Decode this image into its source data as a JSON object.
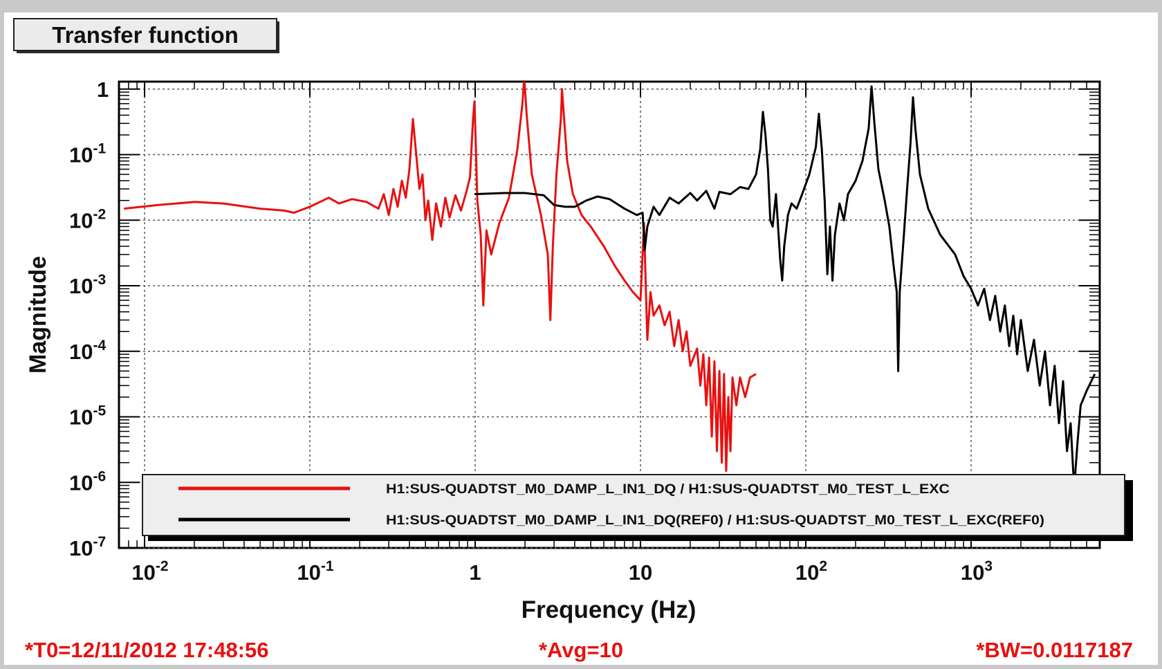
{
  "title_box": "Transfer function",
  "footer": {
    "t0": "*T0=12/11/2012 17:48:56",
    "avg": "*Avg=10",
    "bw": "*BW=0.0117187"
  },
  "colors": {
    "series_ref": "#e81010",
    "series_cur": "#000000",
    "footer_text": "#e81010",
    "plot_bg": "#ffffff",
    "frame_bg": "#ffffff",
    "legend_bg": "#eeeeee"
  },
  "chart_data": {
    "type": "line",
    "xlabel": "Frequency (Hz)",
    "ylabel": "Magnitude",
    "xscale": "log",
    "yscale": "log",
    "xlim": [
      0.007,
      6000
    ],
    "ylim": [
      1e-07,
      1.3
    ],
    "grid": true,
    "legend_placement": "bottom",
    "x_ticks": [
      {
        "v": 0.01,
        "base": "10",
        "exp": "-2"
      },
      {
        "v": 0.1,
        "base": "10",
        "exp": "-1"
      },
      {
        "v": 1,
        "base": "1",
        "exp": ""
      },
      {
        "v": 10,
        "base": "10",
        "exp": ""
      },
      {
        "v": 100,
        "base": "10",
        "exp": "2"
      },
      {
        "v": 1000,
        "base": "10",
        "exp": "3"
      }
    ],
    "y_ticks": [
      {
        "v": 1,
        "base": "1",
        "exp": ""
      },
      {
        "v": 0.1,
        "base": "10",
        "exp": "-1"
      },
      {
        "v": 0.01,
        "base": "10",
        "exp": "-2"
      },
      {
        "v": 0.001,
        "base": "10",
        "exp": "-3"
      },
      {
        "v": 0.0001,
        "base": "10",
        "exp": "-4"
      },
      {
        "v": 1e-05,
        "base": "10",
        "exp": "-5"
      },
      {
        "v": 1e-06,
        "base": "10",
        "exp": "-6"
      },
      {
        "v": 1e-07,
        "base": "10",
        "exp": "-7"
      }
    ],
    "series": [
      {
        "name": "H1:SUS-QUADTST_M0_DAMP_L_IN1_DQ / H1:SUS-QUADTST_M0_TEST_L_EXC",
        "color": "#e81010",
        "points": [
          [
            0.0075,
            0.015
          ],
          [
            0.012,
            0.017
          ],
          [
            0.02,
            0.019
          ],
          [
            0.03,
            0.018
          ],
          [
            0.05,
            0.015
          ],
          [
            0.07,
            0.014
          ],
          [
            0.08,
            0.013
          ],
          [
            0.1,
            0.016
          ],
          [
            0.13,
            0.022
          ],
          [
            0.15,
            0.018
          ],
          [
            0.18,
            0.021
          ],
          [
            0.22,
            0.019
          ],
          [
            0.26,
            0.015
          ],
          [
            0.28,
            0.025
          ],
          [
            0.3,
            0.012
          ],
          [
            0.32,
            0.03
          ],
          [
            0.34,
            0.016
          ],
          [
            0.36,
            0.04
          ],
          [
            0.38,
            0.022
          ],
          [
            0.4,
            0.06
          ],
          [
            0.42,
            0.35
          ],
          [
            0.44,
            0.1
          ],
          [
            0.46,
            0.03
          ],
          [
            0.48,
            0.05
          ],
          [
            0.5,
            0.01
          ],
          [
            0.52,
            0.02
          ],
          [
            0.55,
            0.005
          ],
          [
            0.58,
            0.018
          ],
          [
            0.62,
            0.008
          ],
          [
            0.66,
            0.022
          ],
          [
            0.7,
            0.011
          ],
          [
            0.76,
            0.024
          ],
          [
            0.82,
            0.014
          ],
          [
            0.88,
            0.026
          ],
          [
            0.93,
            0.045
          ],
          [
            0.97,
            0.35
          ],
          [
            0.99,
            0.65
          ],
          [
            1.01,
            0.12
          ],
          [
            1.03,
            0.02
          ],
          [
            1.08,
            0.006
          ],
          [
            1.12,
            0.0005
          ],
          [
            1.17,
            0.007
          ],
          [
            1.25,
            0.003
          ],
          [
            1.4,
            0.009
          ],
          [
            1.6,
            0.022
          ],
          [
            1.8,
            0.12
          ],
          [
            1.93,
            0.6
          ],
          [
            1.98,
            1.5
          ],
          [
            2.05,
            0.4
          ],
          [
            2.2,
            0.05
          ],
          [
            2.5,
            0.012
          ],
          [
            2.75,
            0.003
          ],
          [
            2.85,
            0.0003
          ],
          [
            2.95,
            0.004
          ],
          [
            3.1,
            0.05
          ],
          [
            3.3,
            0.35
          ],
          [
            3.35,
            1.0
          ],
          [
            3.45,
            0.35
          ],
          [
            3.6,
            0.08
          ],
          [
            3.9,
            0.025
          ],
          [
            4.4,
            0.012
          ],
          [
            5,
            0.008
          ],
          [
            6,
            0.004
          ],
          [
            7,
            0.002
          ],
          [
            8,
            0.0012
          ],
          [
            9,
            0.0008
          ],
          [
            10,
            0.0006
          ],
          [
            10.5,
            0.009
          ],
          [
            11,
            0.00015
          ],
          [
            11.5,
            0.0008
          ],
          [
            12,
            0.00035
          ],
          [
            13,
            0.0005
          ],
          [
            14,
            0.00025
          ],
          [
            15,
            0.0004
          ],
          [
            16,
            0.00012
          ],
          [
            17,
            0.0003
          ],
          [
            18,
            0.0001
          ],
          [
            19,
            0.0002
          ],
          [
            20,
            6e-05
          ],
          [
            22,
            0.00011
          ],
          [
            23,
            3e-05
          ],
          [
            24,
            9e-05
          ],
          [
            25,
            1.5e-05
          ],
          [
            26,
            8e-05
          ],
          [
            27,
            5e-06
          ],
          [
            28,
            7e-05
          ],
          [
            29,
            3e-06
          ],
          [
            30,
            5e-05
          ],
          [
            31,
            2e-06
          ],
          [
            32,
            4.5e-05
          ],
          [
            33,
            1.5e-06
          ],
          [
            34,
            2e-05
          ],
          [
            35,
            3e-06
          ],
          [
            36,
            4e-05
          ],
          [
            38,
            1.5e-05
          ],
          [
            40,
            4e-05
          ],
          [
            43,
            2e-05
          ],
          [
            46,
            4e-05
          ],
          [
            50,
            4.5e-05
          ]
        ]
      },
      {
        "name": "H1:SUS-QUADTST_M0_DAMP_L_IN1_DQ(REF0) / H1:SUS-QUADTST_M0_TEST_L_EXC(REF0)",
        "color": "#000000",
        "points": [
          [
            0.99,
            0.025
          ],
          [
            1.5,
            0.026
          ],
          [
            2,
            0.026
          ],
          [
            2.6,
            0.024
          ],
          [
            3,
            0.017
          ],
          [
            3.5,
            0.016
          ],
          [
            4,
            0.016
          ],
          [
            4.7,
            0.02
          ],
          [
            5.5,
            0.023
          ],
          [
            6.5,
            0.021
          ],
          [
            8,
            0.015
          ],
          [
            9.5,
            0.012
          ],
          [
            10.3,
            0.013
          ],
          [
            10.6,
            0.0035
          ],
          [
            11,
            0.008
          ],
          [
            12,
            0.016
          ],
          [
            13,
            0.012
          ],
          [
            15,
            0.022
          ],
          [
            17,
            0.018
          ],
          [
            20,
            0.026
          ],
          [
            22,
            0.02
          ],
          [
            25,
            0.028
          ],
          [
            28,
            0.015
          ],
          [
            30,
            0.027
          ],
          [
            35,
            0.025
          ],
          [
            40,
            0.032
          ],
          [
            45,
            0.03
          ],
          [
            50,
            0.05
          ],
          [
            53,
            0.12
          ],
          [
            55,
            0.45
          ],
          [
            57,
            0.2
          ],
          [
            59,
            0.06
          ],
          [
            61,
            0.01
          ],
          [
            63,
            0.008
          ],
          [
            66,
            0.025
          ],
          [
            70,
            0.0025
          ],
          [
            72,
            0.0012
          ],
          [
            74,
            0.004
          ],
          [
            78,
            0.012
          ],
          [
            82,
            0.018
          ],
          [
            88,
            0.015
          ],
          [
            95,
            0.025
          ],
          [
            105,
            0.05
          ],
          [
            115,
            0.13
          ],
          [
            120,
            0.42
          ],
          [
            125,
            0.12
          ],
          [
            130,
            0.02
          ],
          [
            135,
            0.0015
          ],
          [
            140,
            0.008
          ],
          [
            145,
            0.0012
          ],
          [
            150,
            0.006
          ],
          [
            160,
            0.018
          ],
          [
            170,
            0.01
          ],
          [
            180,
            0.025
          ],
          [
            200,
            0.04
          ],
          [
            220,
            0.08
          ],
          [
            240,
            0.25
          ],
          [
            250,
            1.1
          ],
          [
            260,
            0.3
          ],
          [
            275,
            0.06
          ],
          [
            300,
            0.02
          ],
          [
            320,
            0.008
          ],
          [
            340,
            0.002
          ],
          [
            355,
            0.0008
          ],
          [
            362,
            5e-05
          ],
          [
            370,
            0.0008
          ],
          [
            390,
            0.005
          ],
          [
            410,
            0.03
          ],
          [
            430,
            0.15
          ],
          [
            445,
            0.75
          ],
          [
            460,
            0.25
          ],
          [
            490,
            0.05
          ],
          [
            550,
            0.015
          ],
          [
            650,
            0.006
          ],
          [
            800,
            0.003
          ],
          [
            900,
            0.0014
          ],
          [
            1000,
            0.0009
          ],
          [
            1100,
            0.0005
          ],
          [
            1200,
            0.0009
          ],
          [
            1300,
            0.0003
          ],
          [
            1400,
            0.0007
          ],
          [
            1500,
            0.0002
          ],
          [
            1600,
            0.0005
          ],
          [
            1700,
            0.00012
          ],
          [
            1800,
            0.00035
          ],
          [
            1900,
            9e-05
          ],
          [
            2000,
            0.0003
          ],
          [
            2200,
            5e-05
          ],
          [
            2400,
            0.00015
          ],
          [
            2600,
            3e-05
          ],
          [
            2800,
            0.0001
          ],
          [
            3000,
            1.5e-05
          ],
          [
            3200,
            6e-05
          ],
          [
            3400,
            8e-06
          ],
          [
            3600,
            3.5e-05
          ],
          [
            3800,
            3e-06
          ],
          [
            4000,
            8e-06
          ],
          [
            4200,
            8e-07
          ],
          [
            4400,
            4e-06
          ],
          [
            4600,
            1.5e-05
          ],
          [
            5000,
            2.5e-05
          ],
          [
            5600,
            4.5e-05
          ]
        ]
      }
    ]
  }
}
